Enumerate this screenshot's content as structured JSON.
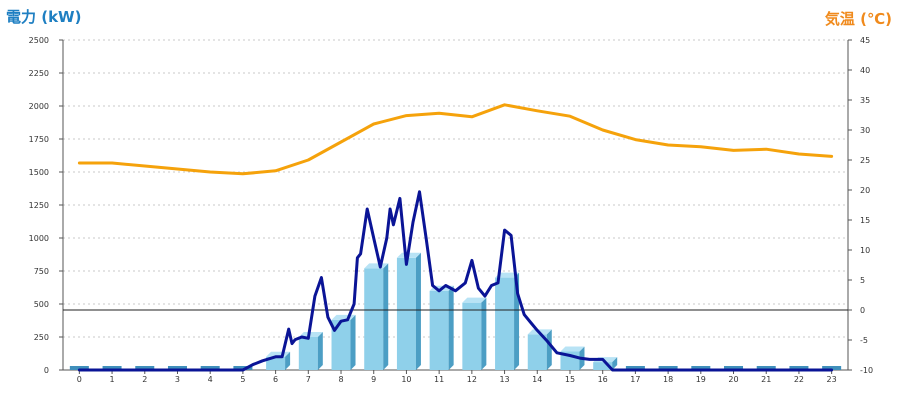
{
  "chart_data": {
    "type": "bar",
    "ylabel_left": "電力 (kW)",
    "ylabel_right": "気温 (℃)",
    "x_ticks": [
      "0",
      "1",
      "2",
      "3",
      "4",
      "5",
      "6",
      "7",
      "8",
      "9",
      "10",
      "11",
      "12",
      "13",
      "14",
      "15",
      "16",
      "17",
      "18",
      "19",
      "20",
      "21",
      "22",
      "23"
    ],
    "y_left_ticks": [
      "0",
      "250",
      "500",
      "750",
      "1000",
      "1250",
      "1500",
      "1750",
      "2000",
      "2250",
      "2500"
    ],
    "y_right_ticks": [
      "-10",
      "-5",
      "0",
      "5",
      "10",
      "15",
      "20",
      "25",
      "30",
      "35",
      "40",
      "45"
    ],
    "ylim_left": [
      0,
      2500
    ],
    "ylim_right": [
      -10,
      45
    ],
    "grid": true,
    "colors": {
      "bar": "#8fd0ea",
      "bar_side": "#4c9ec4",
      "bar_top": "#b8e3f5",
      "bar_baseline": "#3f8fbb",
      "power_line": "#0a1496",
      "temp_line": "#f5a20b",
      "zero_line": "#222222",
      "grid": "#c8c8c8"
    },
    "series": [
      {
        "type": "bar",
        "axis": "left",
        "values": [
          0,
          0,
          0,
          0,
          0,
          0,
          100,
          250,
          380,
          770,
          850,
          600,
          510,
          700,
          270,
          140,
          60,
          0,
          0,
          0,
          0,
          0,
          0,
          0
        ]
      },
      {
        "type": "line",
        "axis": "left",
        "x": [
          0,
          1,
          2,
          3,
          4,
          5,
          5.3,
          5.6,
          6,
          6.2,
          6.4,
          6.5,
          6.6,
          6.8,
          7,
          7.2,
          7.4,
          7.6,
          7.8,
          8,
          8.2,
          8.4,
          8.5,
          8.6,
          8.8,
          9,
          9.2,
          9.4,
          9.5,
          9.6,
          9.8,
          10,
          10.2,
          10.4,
          10.6,
          10.8,
          11,
          11.2,
          11.5,
          11.8,
          12,
          12.2,
          12.4,
          12.6,
          12.8,
          13,
          13.2,
          13.4,
          13.6,
          13.8,
          14,
          14.3,
          14.6,
          15,
          15.3,
          15.6,
          16,
          16.3,
          17,
          18,
          19,
          20,
          21,
          22,
          23
        ],
        "values": [
          0,
          0,
          0,
          0,
          0,
          0,
          40,
          70,
          100,
          100,
          310,
          200,
          230,
          250,
          240,
          560,
          700,
          400,
          300,
          370,
          380,
          500,
          850,
          880,
          1220,
          1000,
          780,
          1000,
          1220,
          1100,
          1300,
          800,
          1120,
          1350,
          1000,
          640,
          600,
          640,
          600,
          660,
          830,
          620,
          560,
          640,
          660,
          1060,
          1020,
          580,
          420,
          360,
          300,
          220,
          130,
          110,
          90,
          80,
          80,
          0,
          0,
          0,
          0,
          0,
          0,
          0,
          0
        ]
      },
      {
        "type": "line",
        "axis": "right",
        "x": [
          0,
          1,
          2,
          3,
          4,
          5,
          6,
          7,
          8,
          9,
          10,
          11,
          12,
          13,
          14,
          15,
          16,
          17,
          18,
          19,
          20,
          21,
          22,
          23
        ],
        "values": [
          24.5,
          24.5,
          24,
          23.5,
          23,
          22.7,
          23.2,
          25,
          28,
          31,
          32.4,
          32.8,
          32.2,
          34.2,
          33.2,
          32.3,
          30,
          28.4,
          27.5,
          27.2,
          26.6,
          26.8,
          26,
          25.6
        ]
      }
    ]
  }
}
